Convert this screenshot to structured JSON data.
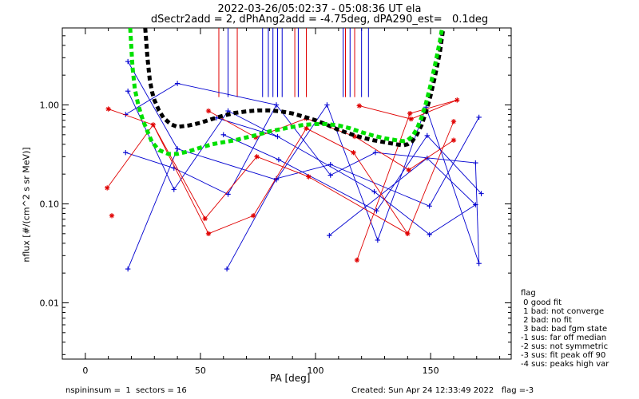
{
  "title_lines": [
    "2022-03-26/05:02:37 - 05:08:36 UT ela",
    "dSectr2add = 2, dPhAng2add = -4.75deg, dPA290_est=   0.1deg"
  ],
  "footer": {
    "left": "nspininsum =  1  sectors = 16",
    "right": "Created: Sun Apr 24 12:33:49 2022   flag =-3"
  },
  "legend": {
    "title": "flag",
    "items": [
      " 0 good fit",
      " 1 bad: not converge",
      " 2 bad: no fit",
      " 3 bad: bad fgm state",
      "-1 sus: far off median",
      "-2 sus: not symmetric",
      "-3 sus: fit peak off 90",
      "-4 sus: peaks high var"
    ]
  },
  "colors": {
    "red": "#e00000",
    "blue": "#0000d0",
    "black_fit": "#000000",
    "green_fit": "#00e000"
  },
  "chart_data": {
    "type": "scatter",
    "xlabel": "PA [deg]",
    "ylabel": "nflux [#/(cm^2 s sr MeV)]",
    "xlim": [
      -10,
      185
    ],
    "ylim": [
      0.0027,
      6.0
    ],
    "yscale": "log",
    "xticks": [
      0,
      50,
      100,
      150
    ],
    "yticks": [
      0.01,
      0.1,
      1.0
    ],
    "ytick_labels": [
      "0.01",
      "0.10",
      "1.00"
    ],
    "series": [
      {
        "color": "blue",
        "marker": "+",
        "points": [
          [
            18.5,
            2.75
          ],
          [
            18.5,
            1.38
          ],
          [
            17.5,
            0.8
          ],
          [
            17.5,
            0.33
          ],
          [
            18.5,
            0.022
          ],
          [
            38.5,
            0.14
          ],
          [
            38.5,
            0.23
          ],
          [
            40.0,
            1.65
          ],
          [
            40.0,
            0.36
          ],
          [
            57.0,
            0.74
          ],
          [
            60.0,
            0.5
          ],
          [
            61.5,
            0.022
          ],
          [
            62.0,
            0.125
          ],
          [
            62.0,
            0.87
          ],
          [
            83.0,
            0.175
          ],
          [
            83.0,
            1.0
          ],
          [
            83.5,
            0.48
          ],
          [
            84.0,
            0.28
          ],
          [
            83.0,
            0.18
          ],
          [
            105.0,
            1.0
          ],
          [
            106.0,
            0.048
          ],
          [
            106.5,
            0.25
          ],
          [
            106.5,
            0.195
          ],
          [
            125.5,
            0.133
          ],
          [
            126.5,
            0.085
          ],
          [
            127.0,
            0.043
          ],
          [
            126.0,
            0.33
          ],
          [
            148.5,
            0.29
          ],
          [
            149.5,
            0.095
          ],
          [
            149.5,
            0.049
          ],
          [
            148.0,
            0.95
          ],
          [
            148.5,
            0.49
          ],
          [
            169.5,
            0.26
          ],
          [
            169.5,
            0.098
          ],
          [
            171.0,
            0.75
          ],
          [
            171.0,
            0.025
          ],
          [
            172.0,
            0.127
          ]
        ],
        "segments": [
          [
            0,
            8
          ],
          [
            1,
            5
          ],
          [
            2,
            7
          ],
          [
            3,
            6
          ],
          [
            4,
            8
          ],
          [
            5,
            13
          ],
          [
            6,
            12
          ],
          [
            7,
            15
          ],
          [
            8,
            14
          ],
          [
            9,
            16
          ],
          [
            10,
            17
          ],
          [
            11,
            18
          ],
          [
            12,
            15
          ],
          [
            13,
            16
          ],
          [
            14,
            19
          ],
          [
            15,
            22
          ],
          [
            16,
            23
          ],
          [
            17,
            24
          ],
          [
            18,
            21
          ],
          [
            19,
            25
          ],
          [
            20,
            27
          ],
          [
            21,
            28
          ],
          [
            22,
            26
          ],
          [
            23,
            29
          ],
          [
            24,
            31
          ],
          [
            25,
            30
          ],
          [
            26,
            32
          ],
          [
            27,
            33
          ],
          [
            28,
            34
          ],
          [
            29,
            33
          ],
          [
            30,
            35
          ],
          [
            31,
            36
          ],
          [
            32,
            35
          ]
        ]
      },
      {
        "color": "red",
        "marker": "*",
        "points": [
          [
            9.5,
            0.145
          ],
          [
            10.0,
            0.91
          ],
          [
            11.5,
            0.076
          ],
          [
            29.5,
            0.63
          ],
          [
            52.0,
            0.071
          ],
          [
            53.5,
            0.87
          ],
          [
            53.5,
            0.05
          ],
          [
            73.0,
            0.076
          ],
          [
            74.5,
            0.3
          ],
          [
            74.0,
            0.47
          ],
          [
            96.0,
            0.58
          ],
          [
            96.0,
            0.73
          ],
          [
            97.0,
            0.188
          ],
          [
            116.5,
            0.33
          ],
          [
            117.0,
            0.48
          ],
          [
            118.0,
            0.027
          ],
          [
            119.0,
            0.98
          ],
          [
            140.0,
            0.05
          ],
          [
            140.5,
            0.22
          ],
          [
            141.0,
            0.82
          ],
          [
            141.5,
            0.72
          ],
          [
            160.0,
            0.68
          ],
          [
            160.0,
            0.44
          ],
          [
            161.5,
            1.12
          ]
        ],
        "segments": [
          [
            0,
            3
          ],
          [
            1,
            3
          ],
          [
            3,
            4
          ],
          [
            3,
            6
          ],
          [
            5,
            9
          ],
          [
            4,
            8
          ],
          [
            6,
            7
          ],
          [
            7,
            10
          ],
          [
            8,
            12
          ],
          [
            9,
            11
          ],
          [
            10,
            13
          ],
          [
            11,
            14
          ],
          [
            12,
            17
          ],
          [
            13,
            17
          ],
          [
            14,
            18
          ],
          [
            15,
            19
          ],
          [
            16,
            20
          ],
          [
            17,
            21
          ],
          [
            18,
            22
          ],
          [
            19,
            23
          ],
          [
            20,
            23
          ]
        ]
      },
      {
        "color": "black_fit",
        "style": "dashed-fit",
        "points": [
          [
            26,
            6.0
          ],
          [
            27,
            3.0
          ],
          [
            28,
            1.8
          ],
          [
            29,
            1.35
          ],
          [
            30,
            1.12
          ],
          [
            32,
            0.88
          ],
          [
            34,
            0.74
          ],
          [
            37,
            0.64
          ],
          [
            40,
            0.6
          ],
          [
            45,
            0.62
          ],
          [
            50,
            0.66
          ],
          [
            55,
            0.72
          ],
          [
            60,
            0.78
          ],
          [
            65,
            0.83
          ],
          [
            70,
            0.86
          ],
          [
            75,
            0.88
          ],
          [
            80,
            0.88
          ],
          [
            85,
            0.86
          ],
          [
            90,
            0.82
          ],
          [
            95,
            0.76
          ],
          [
            100,
            0.7
          ],
          [
            105,
            0.63
          ],
          [
            110,
            0.56
          ],
          [
            115,
            0.51
          ],
          [
            120,
            0.47
          ],
          [
            125,
            0.44
          ],
          [
            130,
            0.42
          ],
          [
            135,
            0.4
          ],
          [
            138,
            0.39
          ],
          [
            140,
            0.4
          ],
          [
            142,
            0.43
          ],
          [
            144,
            0.5
          ],
          [
            146,
            0.62
          ],
          [
            148,
            0.85
          ],
          [
            150,
            1.25
          ],
          [
            152,
            2.0
          ],
          [
            154,
            3.4
          ],
          [
            155.5,
            6.0
          ]
        ]
      },
      {
        "color": "green_fit",
        "style": "dashed-fit",
        "points": [
          [
            19.5,
            6.0
          ],
          [
            20.5,
            2.4
          ],
          [
            21.5,
            1.45
          ],
          [
            23,
            1.0
          ],
          [
            25,
            0.7
          ],
          [
            27,
            0.54
          ],
          [
            29,
            0.42
          ],
          [
            32,
            0.35
          ],
          [
            36,
            0.32
          ],
          [
            40,
            0.32
          ],
          [
            45,
            0.34
          ],
          [
            50,
            0.37
          ],
          [
            55,
            0.4
          ],
          [
            60,
            0.42
          ],
          [
            65,
            0.44
          ],
          [
            70,
            0.47
          ],
          [
            75,
            0.5
          ],
          [
            80,
            0.54
          ],
          [
            85,
            0.57
          ],
          [
            90,
            0.6
          ],
          [
            95,
            0.63
          ],
          [
            100,
            0.64
          ],
          [
            105,
            0.64
          ],
          [
            110,
            0.62
          ],
          [
            115,
            0.58
          ],
          [
            120,
            0.53
          ],
          [
            125,
            0.49
          ],
          [
            130,
            0.46
          ],
          [
            135,
            0.44
          ],
          [
            138,
            0.43
          ],
          [
            140,
            0.44
          ],
          [
            142,
            0.48
          ],
          [
            144,
            0.57
          ],
          [
            146,
            0.74
          ],
          [
            148,
            1.05
          ],
          [
            150,
            1.6
          ],
          [
            152,
            2.6
          ],
          [
            154,
            4.4
          ],
          [
            155,
            6.0
          ]
        ]
      }
    ],
    "vertical_lines": {
      "blue": [
        62.0,
        77.0,
        79.5,
        81.5,
        83.5,
        85.5,
        92.5,
        112.0,
        115.0,
        120.0,
        123.0
      ],
      "red": [
        58.0,
        66.0,
        91.0,
        96.0,
        113.0,
        117.0
      ],
      "bottom_value": 1.2
    }
  }
}
